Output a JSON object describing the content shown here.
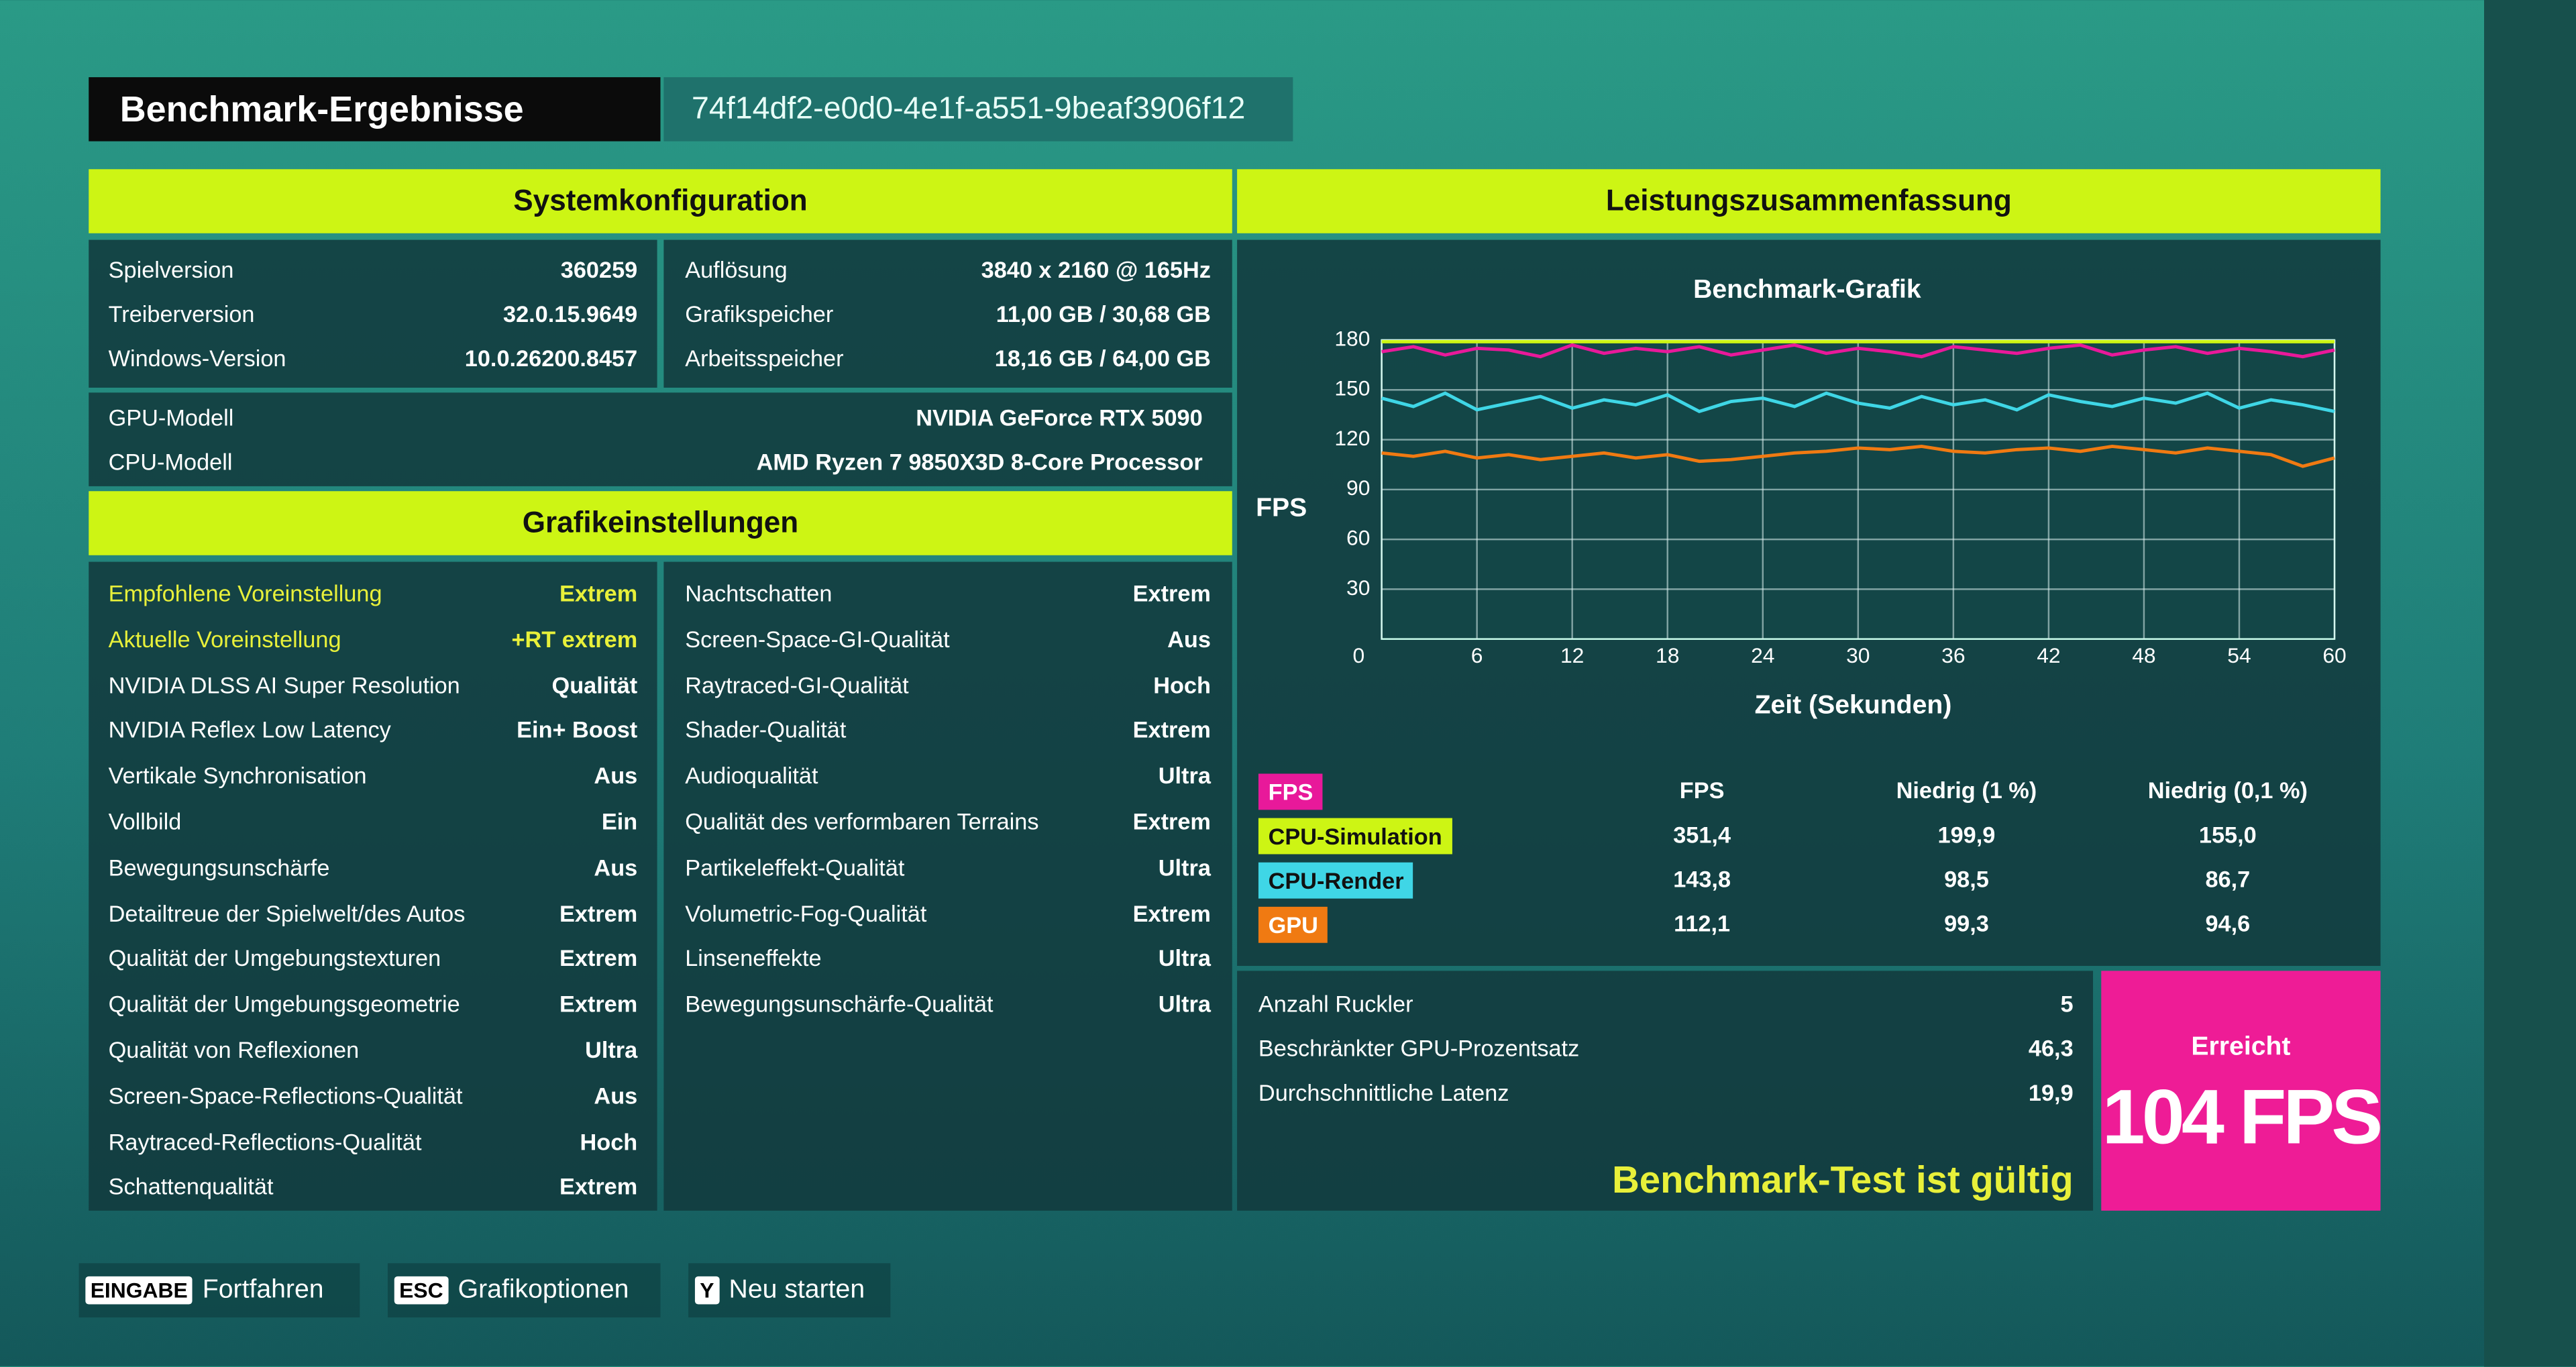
{
  "header": {
    "title": "Benchmark-Ergebnisse",
    "id": "74f14df2-e0d0-4e1f-a551-9beaf3906f12"
  },
  "system": {
    "title": "Systemkonfiguration",
    "left": [
      [
        "Spielversion",
        "360259"
      ],
      [
        "Treiberversion",
        "32.0.15.9649"
      ],
      [
        "Windows-Version",
        "10.0.26200.8457"
      ]
    ],
    "right": [
      [
        "Auflösung",
        "3840 x 2160 @ 165Hz"
      ],
      [
        "Grafikspeicher",
        "11,00 GB / 30,68 GB"
      ],
      [
        "Arbeitsspeicher",
        "18,16 GB / 64,00 GB"
      ]
    ],
    "hardware": [
      [
        "GPU-Modell",
        "NVIDIA GeForce RTX 5090"
      ],
      [
        "CPU-Modell",
        "AMD Ryzen 7 9850X3D 8-Core Processor"
      ]
    ]
  },
  "graphics": {
    "title": "Grafikeinstellungen",
    "left": [
      [
        "Empfohlene Voreinstellung",
        "Extrem"
      ],
      [
        "Aktuelle Voreinstellung",
        "+RT extrem"
      ],
      [
        "NVIDIA DLSS AI Super Resolution",
        "Qualität"
      ],
      [
        "NVIDIA Reflex Low Latency",
        "Ein+ Boost"
      ],
      [
        "Vertikale Synchronisation",
        "Aus"
      ],
      [
        "Vollbild",
        "Ein"
      ],
      [
        "Bewegungsunschärfe",
        "Aus"
      ],
      [
        "Detailtreue der Spielwelt/des Autos",
        "Extrem"
      ],
      [
        "Qualität der Umgebungstexturen",
        "Extrem"
      ],
      [
        "Qualität der Umgebungsgeometrie",
        "Extrem"
      ],
      [
        "Qualität von Reflexionen",
        "Ultra"
      ],
      [
        "Screen-Space-Reflections-Qualität",
        "Aus"
      ],
      [
        "Raytraced-Reflections-Qualität",
        "Hoch"
      ],
      [
        "Schattenqualität",
        "Extrem"
      ]
    ],
    "right": [
      [
        "Nachtschatten",
        "Extrem"
      ],
      [
        "Screen-Space-GI-Qualität",
        "Aus"
      ],
      [
        "Raytraced-GI-Qualität",
        "Hoch"
      ],
      [
        "Shader-Qualität",
        "Extrem"
      ],
      [
        "Audioqualität",
        "Ultra"
      ],
      [
        "Qualität des verformbaren Terrains",
        "Extrem"
      ],
      [
        "Partikeleffekt-Qualität",
        "Ultra"
      ],
      [
        "Volumetric-Fog-Qualität",
        "Extrem"
      ],
      [
        "Linseneffekte",
        "Ultra"
      ],
      [
        "Bewegungsunschärfe-Qualität",
        "Ultra"
      ]
    ]
  },
  "performance": {
    "title": "Leistungszusammenfassung",
    "columns": [
      "FPS",
      "Niedrig (1 %)",
      "Niedrig (0,1 %)"
    ],
    "rows": [
      [
        "351,4",
        "199,9",
        "155,0"
      ],
      [
        "143,8",
        "98,5",
        "86,7"
      ],
      [
        "112,1",
        "99,3",
        "94,6"
      ]
    ],
    "stats": [
      [
        "Anzahl Ruckler",
        "5"
      ],
      [
        "Beschränkter GPU-Prozentsatz",
        "46,3"
      ],
      [
        "Durchschnittliche Latenz",
        "19,9"
      ]
    ],
    "status": "Benchmark-Test ist gültig",
    "achieved_label": "Erreicht",
    "achieved_value": "104 FPS"
  },
  "chart_data": {
    "type": "line",
    "title": "Benchmark-Grafik",
    "y_label": "FPS",
    "x_label": "Zeit (Sekunden)",
    "x": [
      0,
      2,
      4,
      6,
      8,
      10,
      12,
      14,
      16,
      18,
      20,
      22,
      24,
      26,
      28,
      30,
      32,
      34,
      36,
      38,
      40,
      42,
      44,
      46,
      48,
      50,
      52,
      54,
      56,
      58,
      60
    ],
    "xlim": [
      0,
      60
    ],
    "xticks": [
      0,
      6,
      12,
      18,
      24,
      30,
      36,
      42,
      48,
      54,
      60
    ],
    "ylim": [
      0,
      180
    ],
    "yticks": [
      30,
      60,
      90,
      120,
      150,
      180
    ],
    "grid": true,
    "series": [
      {
        "name": "FPS",
        "color": "#e8199a",
        "values": [
          173,
          176,
          171,
          175,
          174,
          170,
          177,
          172,
          175,
          173,
          176,
          171,
          174,
          177,
          172,
          175,
          173,
          170,
          176,
          174,
          172,
          175,
          177,
          171,
          174,
          176,
          172,
          175,
          173,
          170,
          174
        ]
      },
      {
        "name": "CPU-Simulation",
        "color": "#cdf514",
        "values": [
          179,
          179,
          179,
          179,
          179,
          179,
          179,
          179,
          179,
          179,
          179,
          179,
          179,
          179,
          179,
          179,
          179,
          179,
          179,
          179,
          179,
          179,
          179,
          179,
          179,
          179,
          179,
          179,
          179,
          179,
          179
        ]
      },
      {
        "name": "CPU-Render",
        "color": "#3fd6e6",
        "values": [
          145,
          140,
          148,
          138,
          142,
          146,
          139,
          144,
          141,
          147,
          137,
          143,
          145,
          140,
          148,
          142,
          139,
          146,
          141,
          144,
          138,
          147,
          143,
          140,
          145,
          142,
          148,
          139,
          144,
          141,
          137
        ]
      },
      {
        "name": "GPU",
        "color": "#f07a12",
        "values": [
          112,
          110,
          113,
          109,
          111,
          108,
          110,
          112,
          109,
          111,
          107,
          108,
          110,
          112,
          113,
          115,
          114,
          116,
          113,
          112,
          114,
          115,
          113,
          116,
          114,
          112,
          115,
          113,
          111,
          104,
          109
        ]
      }
    ]
  },
  "footer": [
    {
      "key": "EINGABE",
      "label": "Fortfahren"
    },
    {
      "key": "ESC",
      "label": "Grafikoptionen"
    },
    {
      "key": "Y",
      "label": "Neu starten"
    }
  ]
}
